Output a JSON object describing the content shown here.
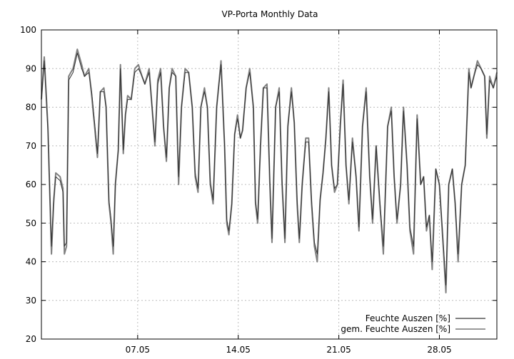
{
  "chart_data": {
    "type": "line",
    "title": "VP-Porta Monthly Data",
    "xlabel": "",
    "ylabel": "",
    "xlim_days": [
      0,
      31.7
    ],
    "ylim": [
      20,
      100
    ],
    "y_ticks": [
      20,
      30,
      40,
      50,
      60,
      70,
      80,
      90,
      100
    ],
    "x_ticks": [
      {
        "day": 6.7,
        "label": "07.05"
      },
      {
        "day": 13.7,
        "label": "14.05"
      },
      {
        "day": 20.7,
        "label": "21.05"
      },
      {
        "day": 27.7,
        "label": "28.05"
      }
    ],
    "grid": true,
    "legend_position": "bottom-right",
    "series": [
      {
        "name": "Feuchte Auszen [%]",
        "color": "#808080",
        "points": [
          [
            0.0,
            82
          ],
          [
            0.2,
            93
          ],
          [
            0.45,
            75
          ],
          [
            0.7,
            42
          ],
          [
            0.85,
            55
          ],
          [
            1.0,
            63
          ],
          [
            1.3,
            62
          ],
          [
            1.5,
            59
          ],
          [
            1.6,
            42
          ],
          [
            1.75,
            44
          ],
          [
            1.9,
            88
          ],
          [
            2.2,
            90
          ],
          [
            2.5,
            95
          ],
          [
            2.8,
            91
          ],
          [
            3.0,
            88
          ],
          [
            3.3,
            90
          ],
          [
            3.5,
            83
          ],
          [
            3.7,
            75
          ],
          [
            3.9,
            67
          ],
          [
            4.1,
            84
          ],
          [
            4.35,
            85
          ],
          [
            4.5,
            80
          ],
          [
            4.7,
            55
          ],
          [
            4.85,
            50
          ],
          [
            5.0,
            42
          ],
          [
            5.15,
            60
          ],
          [
            5.35,
            69
          ],
          [
            5.5,
            91
          ],
          [
            5.7,
            68
          ],
          [
            5.85,
            78
          ],
          [
            6.0,
            83
          ],
          [
            6.25,
            82
          ],
          [
            6.5,
            90
          ],
          [
            6.75,
            91
          ],
          [
            7.0,
            88
          ],
          [
            7.2,
            86
          ],
          [
            7.5,
            90
          ],
          [
            7.7,
            80
          ],
          [
            7.9,
            70
          ],
          [
            8.1,
            87
          ],
          [
            8.3,
            90
          ],
          [
            8.5,
            75
          ],
          [
            8.7,
            66
          ],
          [
            8.9,
            85
          ],
          [
            9.1,
            90
          ],
          [
            9.35,
            88
          ],
          [
            9.55,
            60
          ],
          [
            9.75,
            80
          ],
          [
            10.0,
            90
          ],
          [
            10.25,
            89
          ],
          [
            10.5,
            80
          ],
          [
            10.7,
            62
          ],
          [
            10.9,
            58
          ],
          [
            11.1,
            80
          ],
          [
            11.35,
            85
          ],
          [
            11.55,
            80
          ],
          [
            11.75,
            60
          ],
          [
            11.95,
            55
          ],
          [
            12.2,
            80
          ],
          [
            12.5,
            92
          ],
          [
            12.75,
            70
          ],
          [
            12.9,
            50
          ],
          [
            13.05,
            47
          ],
          [
            13.25,
            55
          ],
          [
            13.45,
            73
          ],
          [
            13.65,
            78
          ],
          [
            13.85,
            72
          ],
          [
            14.0,
            74
          ],
          [
            14.25,
            85
          ],
          [
            14.5,
            90
          ],
          [
            14.75,
            80
          ],
          [
            14.9,
            55
          ],
          [
            15.05,
            50
          ],
          [
            15.25,
            70
          ],
          [
            15.45,
            85
          ],
          [
            15.7,
            86
          ],
          [
            15.9,
            60
          ],
          [
            16.05,
            45
          ],
          [
            16.3,
            80
          ],
          [
            16.55,
            85
          ],
          [
            16.75,
            60
          ],
          [
            16.95,
            45
          ],
          [
            17.15,
            75
          ],
          [
            17.4,
            85
          ],
          [
            17.6,
            76
          ],
          [
            17.8,
            55
          ],
          [
            17.95,
            45
          ],
          [
            18.15,
            60
          ],
          [
            18.4,
            72
          ],
          [
            18.6,
            72
          ],
          [
            18.8,
            55
          ],
          [
            19.0,
            44
          ],
          [
            19.2,
            40
          ],
          [
            19.4,
            56
          ],
          [
            19.6,
            63
          ],
          [
            19.8,
            72
          ],
          [
            20.0,
            85
          ],
          [
            20.2,
            65
          ],
          [
            20.4,
            58
          ],
          [
            20.6,
            60
          ],
          [
            20.8,
            75
          ],
          [
            21.0,
            87
          ],
          [
            21.2,
            65
          ],
          [
            21.4,
            55
          ],
          [
            21.65,
            72
          ],
          [
            21.9,
            62
          ],
          [
            22.1,
            48
          ],
          [
            22.35,
            75
          ],
          [
            22.6,
            85
          ],
          [
            22.85,
            62
          ],
          [
            23.05,
            50
          ],
          [
            23.3,
            70
          ],
          [
            23.55,
            55
          ],
          [
            23.8,
            42
          ],
          [
            24.1,
            75
          ],
          [
            24.35,
            80
          ],
          [
            24.55,
            62
          ],
          [
            24.75,
            50
          ],
          [
            25.0,
            60
          ],
          [
            25.2,
            80
          ],
          [
            25.45,
            65
          ],
          [
            25.65,
            48
          ],
          [
            25.9,
            42
          ],
          [
            26.15,
            78
          ],
          [
            26.4,
            60
          ],
          [
            26.6,
            62
          ],
          [
            26.8,
            48
          ],
          [
            27.0,
            52
          ],
          [
            27.2,
            38
          ],
          [
            27.45,
            64
          ],
          [
            27.7,
            60
          ],
          [
            27.95,
            45
          ],
          [
            28.15,
            32
          ],
          [
            28.35,
            60
          ],
          [
            28.6,
            64
          ],
          [
            28.8,
            55
          ],
          [
            29.0,
            40
          ],
          [
            29.25,
            60
          ],
          [
            29.5,
            65
          ],
          [
            29.75,
            90
          ],
          [
            29.9,
            85
          ],
          [
            30.1,
            88
          ],
          [
            30.35,
            92
          ],
          [
            30.6,
            90
          ],
          [
            30.85,
            88
          ],
          [
            31.0,
            72
          ],
          [
            31.2,
            88
          ],
          [
            31.45,
            85
          ],
          [
            31.7,
            89
          ]
        ]
      },
      {
        "name": "gem. Feuchte Auszen [%]",
        "color": "#303030",
        "points": [
          [
            0.0,
            82
          ],
          [
            0.2,
            92
          ],
          [
            0.45,
            74
          ],
          [
            0.7,
            44
          ],
          [
            0.85,
            56
          ],
          [
            1.0,
            62
          ],
          [
            1.3,
            61
          ],
          [
            1.5,
            58
          ],
          [
            1.6,
            44
          ],
          [
            1.75,
            45
          ],
          [
            1.9,
            87
          ],
          [
            2.2,
            89
          ],
          [
            2.5,
            94
          ],
          [
            2.8,
            90
          ],
          [
            3.0,
            88
          ],
          [
            3.3,
            89
          ],
          [
            3.5,
            84
          ],
          [
            3.7,
            76
          ],
          [
            3.9,
            68
          ],
          [
            4.1,
            84
          ],
          [
            4.35,
            84
          ],
          [
            4.5,
            80
          ],
          [
            4.7,
            56
          ],
          [
            4.85,
            51
          ],
          [
            5.0,
            44
          ],
          [
            5.15,
            60
          ],
          [
            5.35,
            69
          ],
          [
            5.5,
            90
          ],
          [
            5.7,
            69
          ],
          [
            5.85,
            78
          ],
          [
            6.0,
            82
          ],
          [
            6.25,
            82
          ],
          [
            6.5,
            89
          ],
          [
            6.75,
            90
          ],
          [
            7.0,
            88
          ],
          [
            7.2,
            86
          ],
          [
            7.5,
            89
          ],
          [
            7.7,
            80
          ],
          [
            7.9,
            71
          ],
          [
            8.1,
            86
          ],
          [
            8.3,
            89
          ],
          [
            8.5,
            75
          ],
          [
            8.7,
            67
          ],
          [
            8.9,
            85
          ],
          [
            9.1,
            89
          ],
          [
            9.35,
            88
          ],
          [
            9.55,
            62
          ],
          [
            9.75,
            80
          ],
          [
            10.0,
            89
          ],
          [
            10.25,
            89
          ],
          [
            10.5,
            80
          ],
          [
            10.7,
            63
          ],
          [
            10.9,
            59
          ],
          [
            11.1,
            80
          ],
          [
            11.35,
            84
          ],
          [
            11.55,
            80
          ],
          [
            11.75,
            61
          ],
          [
            11.95,
            56
          ],
          [
            12.2,
            80
          ],
          [
            12.5,
            91
          ],
          [
            12.75,
            70
          ],
          [
            12.9,
            51
          ],
          [
            13.05,
            48
          ],
          [
            13.25,
            55
          ],
          [
            13.45,
            73
          ],
          [
            13.65,
            77
          ],
          [
            13.85,
            72
          ],
          [
            14.0,
            74
          ],
          [
            14.25,
            85
          ],
          [
            14.5,
            89
          ],
          [
            14.75,
            80
          ],
          [
            14.9,
            56
          ],
          [
            15.05,
            51
          ],
          [
            15.25,
            70
          ],
          [
            15.45,
            85
          ],
          [
            15.7,
            85
          ],
          [
            15.9,
            61
          ],
          [
            16.05,
            46
          ],
          [
            16.3,
            80
          ],
          [
            16.55,
            84
          ],
          [
            16.75,
            61
          ],
          [
            16.95,
            46
          ],
          [
            17.15,
            75
          ],
          [
            17.4,
            84
          ],
          [
            17.6,
            76
          ],
          [
            17.8,
            56
          ],
          [
            17.95,
            46
          ],
          [
            18.15,
            60
          ],
          [
            18.4,
            71
          ],
          [
            18.6,
            71
          ],
          [
            18.8,
            56
          ],
          [
            19.0,
            45
          ],
          [
            19.2,
            42
          ],
          [
            19.4,
            56
          ],
          [
            19.6,
            63
          ],
          [
            19.8,
            72
          ],
          [
            20.0,
            84
          ],
          [
            20.2,
            65
          ],
          [
            20.4,
            59
          ],
          [
            20.6,
            60
          ],
          [
            20.8,
            75
          ],
          [
            21.0,
            86
          ],
          [
            21.2,
            65
          ],
          [
            21.4,
            56
          ],
          [
            21.65,
            71
          ],
          [
            21.9,
            62
          ],
          [
            22.1,
            49
          ],
          [
            22.35,
            75
          ],
          [
            22.6,
            84
          ],
          [
            22.85,
            62
          ],
          [
            23.05,
            51
          ],
          [
            23.3,
            70
          ],
          [
            23.55,
            56
          ],
          [
            23.8,
            44
          ],
          [
            24.1,
            75
          ],
          [
            24.35,
            79
          ],
          [
            24.55,
            62
          ],
          [
            24.75,
            51
          ],
          [
            25.0,
            60
          ],
          [
            25.2,
            79
          ],
          [
            25.45,
            65
          ],
          [
            25.65,
            49
          ],
          [
            25.9,
            44
          ],
          [
            26.15,
            77
          ],
          [
            26.4,
            60
          ],
          [
            26.6,
            62
          ],
          [
            26.8,
            49
          ],
          [
            27.0,
            52
          ],
          [
            27.2,
            40
          ],
          [
            27.45,
            64
          ],
          [
            27.7,
            60
          ],
          [
            27.95,
            46
          ],
          [
            28.15,
            34
          ],
          [
            28.35,
            60
          ],
          [
            28.6,
            64
          ],
          [
            28.8,
            55
          ],
          [
            29.0,
            42
          ],
          [
            29.25,
            60
          ],
          [
            29.5,
            65
          ],
          [
            29.75,
            89
          ],
          [
            29.9,
            85
          ],
          [
            30.1,
            88
          ],
          [
            30.35,
            91
          ],
          [
            30.6,
            90
          ],
          [
            30.85,
            88
          ],
          [
            31.0,
            73
          ],
          [
            31.2,
            87
          ],
          [
            31.45,
            85
          ],
          [
            31.7,
            88
          ]
        ]
      }
    ]
  }
}
